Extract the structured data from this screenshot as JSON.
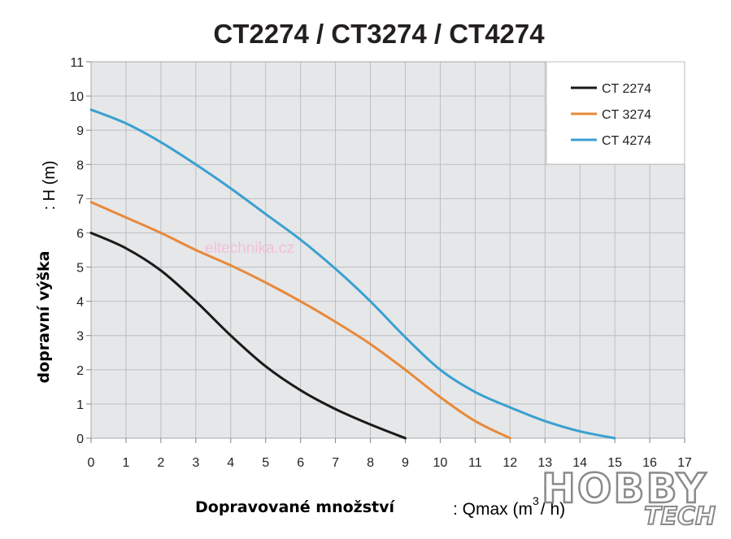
{
  "chart_data": {
    "type": "line",
    "title": "CT2274 / CT3274 / CT4274",
    "xlabel": "Dopravované množství",
    "xlabel_unit_pre": ": Qmax (m",
    "xlabel_unit_sup": "3",
    "xlabel_unit_post": "/ h)",
    "ylabel": "dopravní výška",
    "ylabel_unit": ": H (m)",
    "xlim": [
      0,
      17
    ],
    "ylim": [
      0,
      11
    ],
    "x_ticks": [
      "0",
      "1",
      "2",
      "3",
      "4",
      "5",
      "6",
      "7",
      "8",
      "9",
      "10",
      "11",
      "12",
      "13",
      "14",
      "15",
      "16",
      "17"
    ],
    "y_ticks": [
      "0",
      "1",
      "2",
      "3",
      "4",
      "5",
      "6",
      "7",
      "8",
      "9",
      "10",
      "11"
    ],
    "grid": true,
    "legend_position": "top-right",
    "series": [
      {
        "name": "CT 2274",
        "color": "#1a1a1a",
        "points": [
          [
            0,
            6.0
          ],
          [
            1,
            5.55
          ],
          [
            2,
            4.9
          ],
          [
            3,
            4.0
          ],
          [
            4,
            3.0
          ],
          [
            5,
            2.1
          ],
          [
            6,
            1.4
          ],
          [
            7,
            0.85
          ],
          [
            8,
            0.4
          ],
          [
            9,
            0.0
          ]
        ]
      },
      {
        "name": "CT 3274",
        "color": "#e8893a",
        "points": [
          [
            0,
            6.9
          ],
          [
            1,
            6.45
          ],
          [
            2,
            6.0
          ],
          [
            3,
            5.5
          ],
          [
            4,
            5.05
          ],
          [
            5,
            4.55
          ],
          [
            6,
            4.0
          ],
          [
            7,
            3.4
          ],
          [
            8,
            2.75
          ],
          [
            9,
            2.0
          ],
          [
            10,
            1.2
          ],
          [
            11,
            0.5
          ],
          [
            12,
            0.0
          ]
        ]
      },
      {
        "name": "CT 4274",
        "color": "#3aa0d2",
        "points": [
          [
            0,
            9.6
          ],
          [
            1,
            9.2
          ],
          [
            2,
            8.65
          ],
          [
            3,
            8.0
          ],
          [
            4,
            7.3
          ],
          [
            5,
            6.55
          ],
          [
            6,
            5.8
          ],
          [
            7,
            4.95
          ],
          [
            8,
            4.0
          ],
          [
            9,
            2.95
          ],
          [
            10,
            2.0
          ],
          [
            11,
            1.35
          ],
          [
            12,
            0.9
          ],
          [
            13,
            0.5
          ],
          [
            14,
            0.2
          ],
          [
            15,
            0.0
          ]
        ]
      }
    ]
  },
  "watermark": "eltechnika.cz",
  "logo": {
    "main": "HOBBY",
    "sub": "TECH"
  }
}
